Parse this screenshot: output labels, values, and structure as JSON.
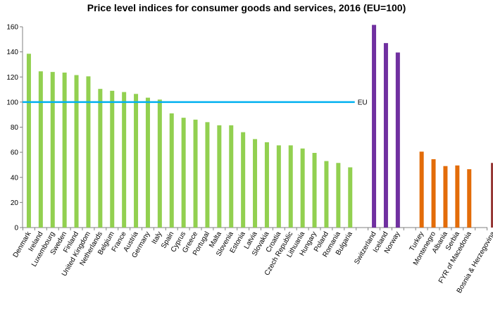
{
  "chart_data": {
    "type": "bar",
    "title": "Price level indices for consumer goods and services, 2016 (EU=100)",
    "xlabel": "",
    "ylabel": "",
    "ylim": [
      0,
      160
    ],
    "yticks": [
      0,
      20,
      40,
      60,
      80,
      100,
      120,
      140,
      160
    ],
    "grid": false,
    "legend": "none",
    "reference_line": {
      "value": 100,
      "label": "EU",
      "color": "#00b0f0"
    },
    "categories": [
      "Denmark",
      "Ireland",
      "Luxembourg",
      "Sweden",
      "Finland",
      "United Kingdom",
      "Netherlands",
      "Belgium",
      "France",
      "Austria",
      "Germany",
      "Italy",
      "Spain",
      "Cyprus",
      "Greece",
      "Portugal",
      "Malta",
      "Slovenia",
      "Estonia",
      "Latvia",
      "Slovakia",
      "Croatia",
      "Czech Republic",
      "Lithuania",
      "Hungary",
      "Poland",
      "Romania",
      "Bulgaria",
      "Switzerland",
      "Iceland",
      "Norway",
      "Turkey",
      "Montenegro",
      "Albania",
      "Serbia",
      "FYR of Macedonia",
      "Bosnia & Herzegovina"
    ],
    "values": [
      138.5,
      124.5,
      124,
      123.5,
      121.5,
      120.5,
      110.5,
      109,
      108,
      106.5,
      103.5,
      102,
      91,
      87.5,
      86,
      84,
      81.5,
      81.5,
      76,
      70.5,
      68,
      65.5,
      65.5,
      63,
      59.5,
      53,
      51.5,
      48,
      161.5,
      147,
      139.5,
      60.5,
      54.5,
      49,
      49.5,
      46.5,
      51.5
    ],
    "groups": [
      {
        "count": 28,
        "color": "#92d050"
      },
      {
        "count": 3,
        "color": "#7030a0"
      },
      {
        "count": 5,
        "color": "#e36c09"
      },
      {
        "count": 1,
        "color": "#953735"
      }
    ]
  }
}
